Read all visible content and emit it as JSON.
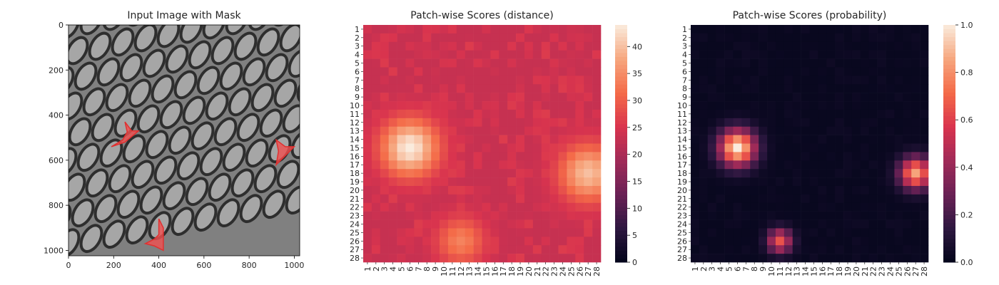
{
  "chart_data": [
    {
      "type": "image",
      "title": "Input Image with Mask",
      "xlim": [
        0,
        1024
      ],
      "ylim": [
        1024,
        0
      ],
      "xticks": [
        0,
        200,
        400,
        600,
        800,
        1000
      ],
      "yticks": [
        0,
        200,
        400,
        600,
        800,
        1000
      ],
      "background_color": "#808080",
      "mask_color": "#f05050",
      "masks": [
        {
          "points": [
            [
              190,
              540
            ],
            [
              240,
              510
            ],
            [
              260,
              475
            ],
            [
              250,
              430
            ],
            [
              280,
              470
            ],
            [
              310,
              470
            ],
            [
              250,
              520
            ]
          ]
        },
        {
          "points": [
            [
              920,
              620
            ],
            [
              930,
              560
            ],
            [
              920,
              510
            ],
            [
              960,
              540
            ],
            [
              1000,
              540
            ],
            [
              960,
              580
            ]
          ]
        },
        {
          "points": [
            [
              340,
              970
            ],
            [
              380,
              950
            ],
            [
              400,
              930
            ],
            [
              400,
              860
            ],
            [
              420,
              900
            ],
            [
              420,
              1000
            ],
            [
              380,
              980
            ]
          ]
        }
      ]
    },
    {
      "type": "heatmap",
      "title": "Patch-wise Scores (distance)",
      "xticklabels": [
        "1",
        "2",
        "3",
        "4",
        "5",
        "6",
        "7",
        "8",
        "9",
        "10",
        "11",
        "12",
        "13",
        "14",
        "15",
        "16",
        "17",
        "18",
        "19",
        "20",
        "21",
        "22",
        "23",
        "24",
        "25",
        "26",
        "27",
        "28"
      ],
      "yticklabels": [
        "1",
        "2",
        "3",
        "4",
        "5",
        "6",
        "7",
        "8",
        "9",
        "10",
        "11",
        "12",
        "13",
        "14",
        "15",
        "16",
        "17",
        "18",
        "19",
        "20",
        "21",
        "22",
        "23",
        "24",
        "25",
        "26",
        "27",
        "28"
      ],
      "colorscale": "rocket",
      "vmin": 0,
      "vmax": 44,
      "colorbar_ticks": [
        0,
        5,
        10,
        15,
        20,
        25,
        30,
        35,
        40
      ],
      "grid_shape": [
        28,
        28
      ],
      "base_value": 23,
      "anomalies": [
        {
          "row": 15,
          "col": 6,
          "peak": 44,
          "spread": 2.4
        },
        {
          "row": 18,
          "col": 27,
          "peak": 40,
          "spread": 2.4
        },
        {
          "row": 26,
          "col": 12,
          "peak": 34,
          "spread": 2.0
        }
      ]
    },
    {
      "type": "heatmap",
      "title": "Patch-wise Scores (probability)",
      "xticklabels": [
        "1",
        "2",
        "3",
        "4",
        "5",
        "6",
        "7",
        "8",
        "9",
        "10",
        "11",
        "12",
        "13",
        "14",
        "15",
        "16",
        "17",
        "18",
        "19",
        "20",
        "21",
        "22",
        "23",
        "24",
        "25",
        "26",
        "27",
        "28"
      ],
      "yticklabels": [
        "1",
        "2",
        "3",
        "4",
        "5",
        "6",
        "7",
        "8",
        "9",
        "10",
        "11",
        "12",
        "13",
        "14",
        "15",
        "16",
        "17",
        "18",
        "19",
        "20",
        "21",
        "22",
        "23",
        "24",
        "25",
        "26",
        "27",
        "28"
      ],
      "colorscale": "rocket",
      "vmin": 0,
      "vmax": 1,
      "colorbar_ticks": [
        "0.0",
        "0.2",
        "0.4",
        "0.6",
        "0.8",
        "1.0"
      ],
      "grid_shape": [
        28,
        28
      ],
      "base_value": 0.02,
      "anomalies": [
        {
          "row": 15,
          "col": 6,
          "peak": 1.0,
          "spread": 1.5
        },
        {
          "row": 18,
          "col": 27,
          "peak": 0.85,
          "spread": 1.3
        },
        {
          "row": 26,
          "col": 11,
          "peak": 0.65,
          "spread": 1.0
        }
      ]
    }
  ]
}
